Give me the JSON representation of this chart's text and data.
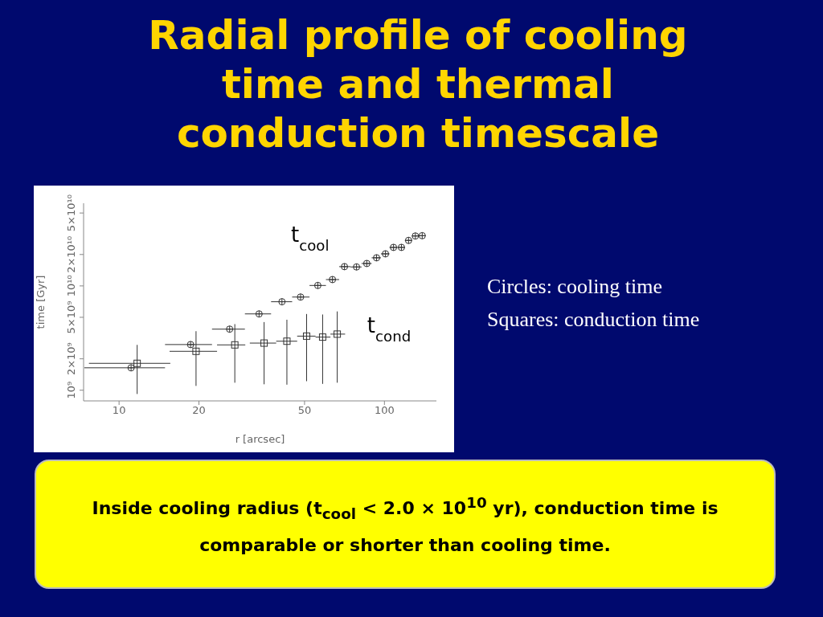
{
  "chart_data": {
    "type": "scatter",
    "title": "Radial profile of cooling time and thermal conduction timescale",
    "xlabel": "r [arcsec]",
    "ylabel": "time [Gyr]",
    "log": "xy",
    "xlim": [
      7.35,
      157
    ],
    "xticks": [
      10,
      20,
      50,
      100
    ],
    "ylim": [
      790000000.0,
      62000000000.0
    ],
    "yticks": [
      {
        "value": 1000000000.0,
        "label": "10⁹"
      },
      {
        "value": 2000000000.0,
        "label": "2×10⁹"
      },
      {
        "value": 5000000000.0,
        "label": "5×10⁹"
      },
      {
        "value": 10000000000.0,
        "label": "10¹⁰"
      },
      {
        "value": 20000000000.0,
        "label": "2×10¹⁰"
      },
      {
        "value": 50000000000.0,
        "label": "5×10¹⁰"
      }
    ],
    "annotations": [
      "Circles: cooling time",
      "Squares: conduction time",
      "Inside cooling radius  (t$_{cool}$ < 2.0 × 10$^{10}$ yr), conduction time is comparable or shorter than cooling time."
    ],
    "series": [
      {
        "name": "t$_{cool}$",
        "color": "#333333",
        "marker": "circle",
        "x": [
          11.1,
          18.6,
          26.1,
          33.7,
          41.1,
          48.3,
          56.1,
          63.7,
          70.7,
          78.5,
          85.8,
          93.4,
          100.9,
          108.2,
          115.9,
          123.3,
          130.8,
          138.8
        ],
        "values": [
          1640000000.0,
          2740000000.0,
          3850000000.0,
          5390000000.0,
          7050000000.0,
          7820000000.0,
          10100000000.0,
          11500000000.0,
          15300000000.0,
          15200000000.0,
          16400000000.0,
          18600000000.0,
          20300000000.0,
          23400000000.0,
          23400000000.0,
          27300000000.0,
          30100000000.0,
          30300000000.0
        ],
        "xerrors": [
          [
            7.4,
            14.9
          ],
          [
            14.9,
            22.4
          ],
          [
            22.4,
            29.8
          ],
          [
            29.8,
            37.4
          ],
          [
            37.4,
            44.9
          ],
          [
            44.9,
            52.2
          ],
          [
            52.2,
            60.2
          ],
          [
            60.2,
            67.5
          ],
          [
            67.5,
            74.5
          ],
          [
            74.5,
            82
          ],
          [
            82,
            89.5
          ],
          [
            89.5,
            97
          ],
          [
            97,
            104.5
          ],
          [
            104.5,
            112
          ],
          [
            112,
            119.5
          ],
          [
            119.5,
            127
          ],
          [
            127,
            134.5
          ],
          [
            134.5,
            143
          ]
        ]
      },
      {
        "name": "t$_{cond}$",
        "color": "#333333",
        "marker": "square",
        "x": [
          11.7,
          19.5,
          27.3,
          35.2,
          42.9,
          50.9,
          58.5,
          66.4
        ],
        "values": [
          1810000000.0,
          2360000000.0,
          2720000000.0,
          2830000000.0,
          2950000000.0,
          3300000000.0,
          3230000000.0,
          3450000000.0
        ],
        "xerrors": [
          [
            7.7,
            15.6
          ],
          [
            15.5,
            23.4
          ],
          [
            23.4,
            29.9
          ],
          [
            31.1,
            39.1
          ],
          [
            39.1,
            46.9
          ],
          [
            46.9,
            55
          ],
          [
            55,
            62.6
          ],
          [
            62.6,
            71.1
          ]
        ],
        "errors": [
          [
            920000000.0,
            2720000000.0
          ],
          [
            1100000000.0,
            3680000000.0
          ],
          [
            1180000000.0,
            4300000000.0
          ],
          [
            1140000000.0,
            4500000000.0
          ],
          [
            1130000000.0,
            4740000000.0
          ],
          [
            1220000000.0,
            5380000000.0
          ],
          [
            1150000000.0,
            5320000000.0
          ],
          [
            1180000000.0,
            5690000000.0
          ]
        ]
      }
    ]
  }
}
